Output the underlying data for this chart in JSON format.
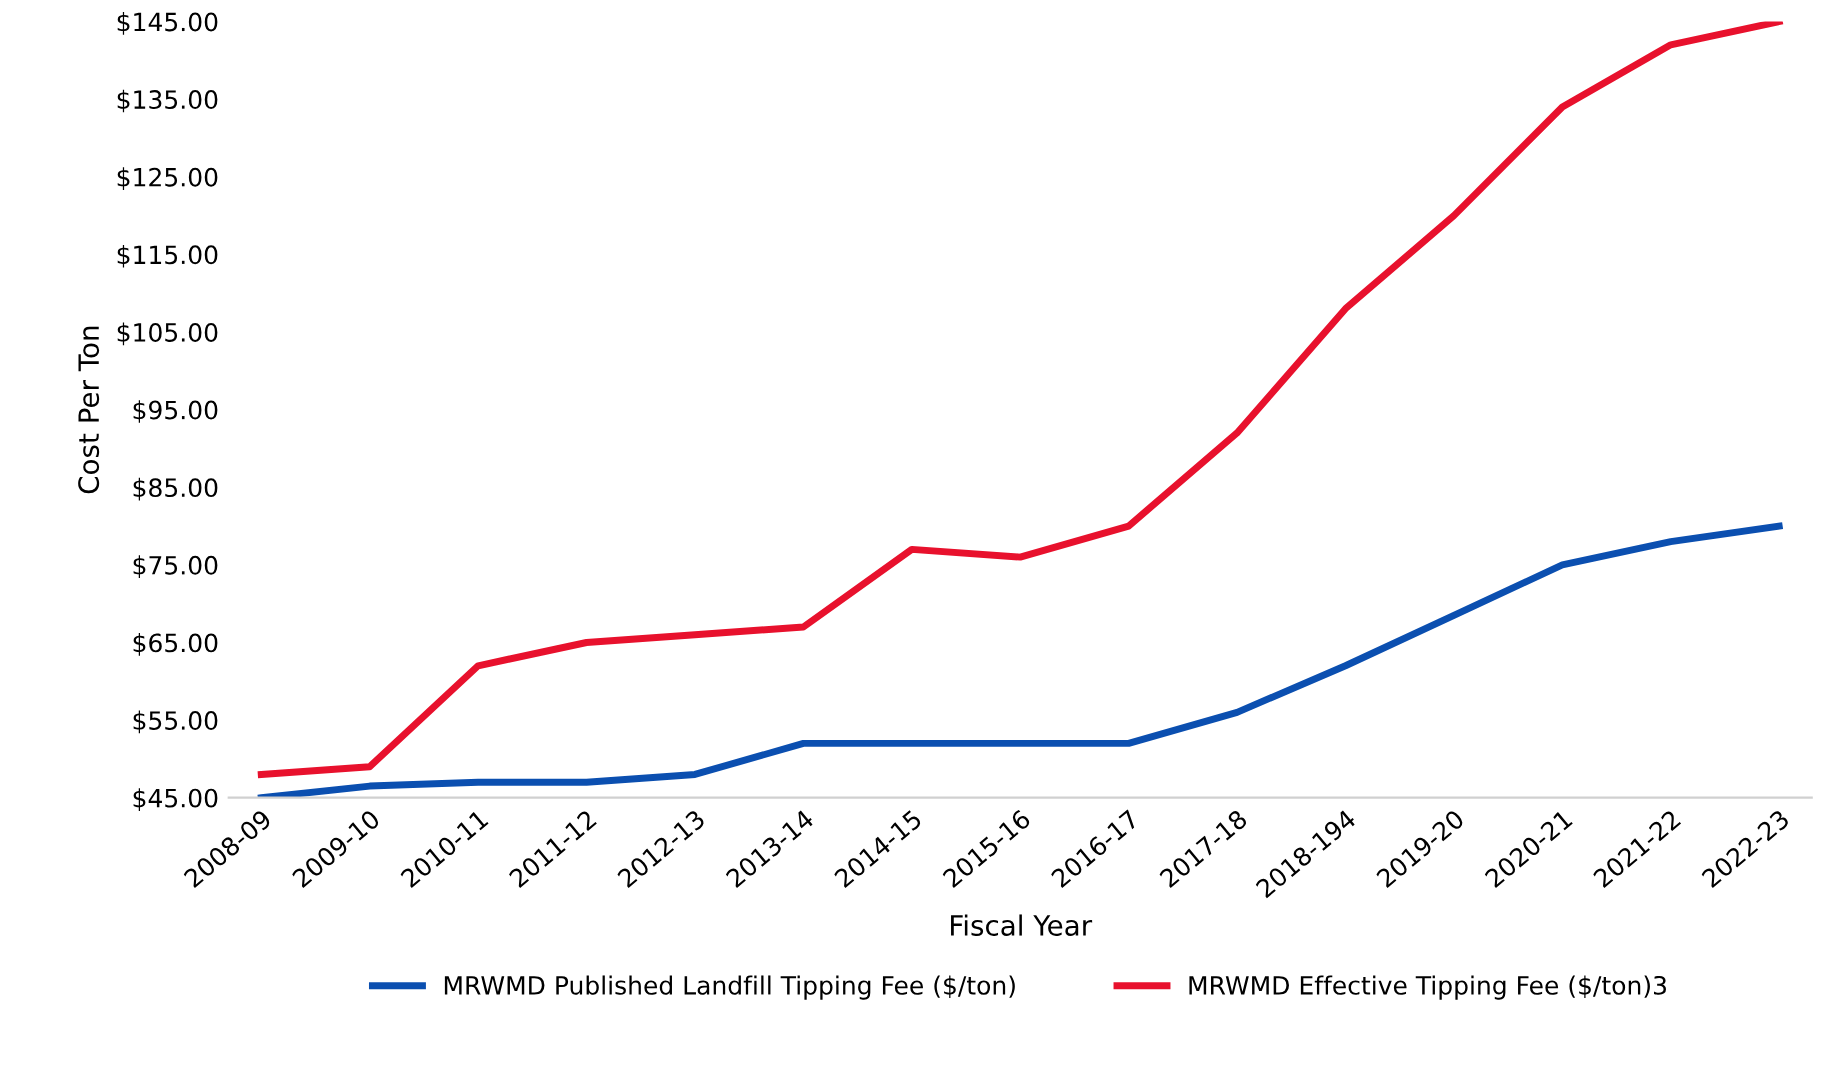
{
  "chart_data": {
    "type": "line",
    "xlabel": "Fiscal Year",
    "ylabel": "Cost Per Ton",
    "categories": [
      "2008-09",
      "2009-10",
      "2010-11",
      "2011-12",
      "2012-13",
      "2013-14",
      "2014-15",
      "2015-16",
      "2016-17",
      "2017-18",
      "2018-194",
      "2019-20",
      "2020-21",
      "2021-22",
      "2022-23"
    ],
    "series": [
      {
        "name": "MRWMD Published Landfill Tipping Fee ($/ton)",
        "color": "#0b4fb0",
        "values": [
          45,
          46.5,
          47,
          47,
          48,
          52,
          52,
          52,
          52,
          56,
          62,
          68.5,
          75,
          78,
          80
        ]
      },
      {
        "name": "MRWMD Effective Tipping Fee ($/ton)3",
        "color": "#e8112d",
        "values": [
          48,
          49,
          62,
          65,
          66,
          67,
          77,
          76,
          80,
          92,
          108,
          120,
          134,
          142,
          145
        ]
      }
    ],
    "ylim": [
      45,
      145
    ],
    "yticks": [
      {
        "value": 45,
        "label": "$45.00"
      },
      {
        "value": 55,
        "label": "$55.00"
      },
      {
        "value": 65,
        "label": "$65.00"
      },
      {
        "value": 75,
        "label": "$75.00"
      },
      {
        "value": 85,
        "label": "$85.00"
      },
      {
        "value": 95,
        "label": "$95.00"
      },
      {
        "value": 105,
        "label": "$105.00"
      },
      {
        "value": 115,
        "label": "$115.00"
      },
      {
        "value": 125,
        "label": "$125.00"
      },
      {
        "value": 135,
        "label": "$135.00"
      },
      {
        "value": 145,
        "label": "$145.00"
      }
    ],
    "legend": "bottom",
    "grid": false,
    "marker": "none",
    "line_style": "solid"
  }
}
